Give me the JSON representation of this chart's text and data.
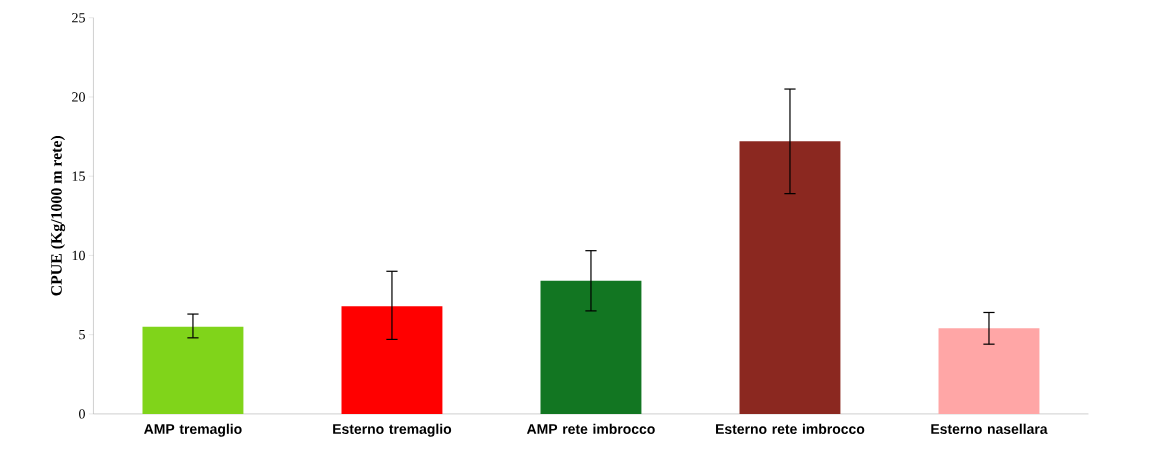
{
  "chart_data": {
    "type": "bar",
    "ylabel": "CPUE (Kg/1000 m rete)",
    "categories": [
      "AMP tremaglio",
      "Esterno tremaglio",
      "AMP rete imbrocco",
      "Esterno rete imbrocco",
      "Esterno nasellara"
    ],
    "values": [
      5.5,
      6.8,
      8.4,
      17.2,
      5.4
    ],
    "errors": [
      [
        4.8,
        6.3
      ],
      [
        4.7,
        9.0
      ],
      [
        6.5,
        10.3
      ],
      [
        13.9,
        20.5
      ],
      [
        4.4,
        6.4
      ]
    ],
    "colors": [
      "#80d41a",
      "#ff0000",
      "#127622",
      "#8b2820",
      "#ffa6a6"
    ],
    "ylim": [
      0,
      25
    ],
    "yticks": [
      0,
      5,
      10,
      15,
      20,
      25
    ]
  }
}
